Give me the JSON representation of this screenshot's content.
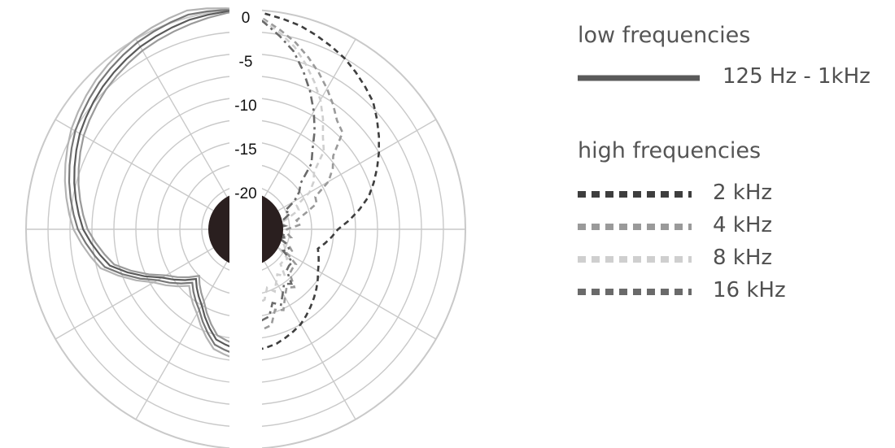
{
  "chart_data": {
    "type": "polar",
    "radial_axis": {
      "tick_labels": [
        "0",
        "-5",
        "-10",
        "-15",
        "-20"
      ],
      "min": -25,
      "max": 0,
      "step": 2.5,
      "angular_spokes_deg": 30
    },
    "legend_groups": [
      {
        "heading": "low frequencies",
        "entries": [
          {
            "name": "125 Hz - 1kHz",
            "style": "solid",
            "color": "#5a5a5a"
          }
        ]
      },
      {
        "heading": "high frequencies",
        "entries": [
          {
            "name": "2 kHz",
            "style": "dashed",
            "color": "#3e3e3e"
          },
          {
            "name": "4 kHz",
            "style": "dashed",
            "color": "#9a9a9a"
          },
          {
            "name": "8 kHz",
            "style": "dashed",
            "color": "#cfcfcf"
          },
          {
            "name": "16 kHz",
            "style": "dashed",
            "color": "#6a6a6a"
          }
        ]
      }
    ],
    "low_frequency_series": {
      "angles_deg": [
        0,
        15,
        30,
        45,
        60,
        75,
        90,
        105,
        120,
        135,
        150,
        165,
        180
      ],
      "levels_db": [
        0,
        -0.3,
        -1.0,
        -2.0,
        -3.2,
        -4.8,
        -6.5,
        -9.0,
        -14.0,
        -17.0,
        -15.0,
        -12.0,
        -11.0
      ]
    },
    "high_frequency_series": [
      {
        "name": "2 kHz",
        "angles_deg": [
          0,
          15,
          30,
          45,
          60,
          75,
          90,
          105,
          120,
          135,
          150,
          165,
          180
        ],
        "levels_db": [
          0,
          -1.0,
          -2.5,
          -4.5,
          -7.5,
          -10.5,
          -14.5,
          -16.5,
          -15.5,
          -14.0,
          -12.5,
          -11.5,
          -11.0
        ]
      },
      {
        "name": "4 kHz",
        "angles_deg": [
          0,
          15,
          30,
          45,
          60,
          75,
          90,
          105,
          120,
          135,
          150,
          165,
          180
        ],
        "levels_db": [
          0,
          -3.0,
          -6.5,
          -10.0,
          -14.5,
          -18.0,
          -20.0,
          -20.5,
          -19.0,
          -17.5,
          -16.0,
          -14.0,
          -13.0
        ]
      },
      {
        "name": "8 kHz",
        "angles_deg": [
          0,
          15,
          30,
          45,
          60,
          75,
          90,
          105,
          120,
          135,
          150,
          165,
          180
        ],
        "levels_db": [
          0,
          -3.5,
          -8.0,
          -13.0,
          -17.0,
          -20.0,
          -21.5,
          -21.0,
          -20.0,
          -19.0,
          -18.0,
          -17.0,
          -16.0
        ]
      },
      {
        "name": "16 kHz",
        "angles_deg": [
          0,
          15,
          30,
          45,
          60,
          75,
          90,
          105,
          120,
          135,
          150,
          165,
          180
        ],
        "levels_db": [
          0,
          -4.0,
          -9.5,
          -15.0,
          -19.0,
          -20.5,
          -21.5,
          -20.5,
          -19.5,
          -18.0,
          -16.5,
          -15.0,
          -14.0
        ]
      }
    ]
  }
}
